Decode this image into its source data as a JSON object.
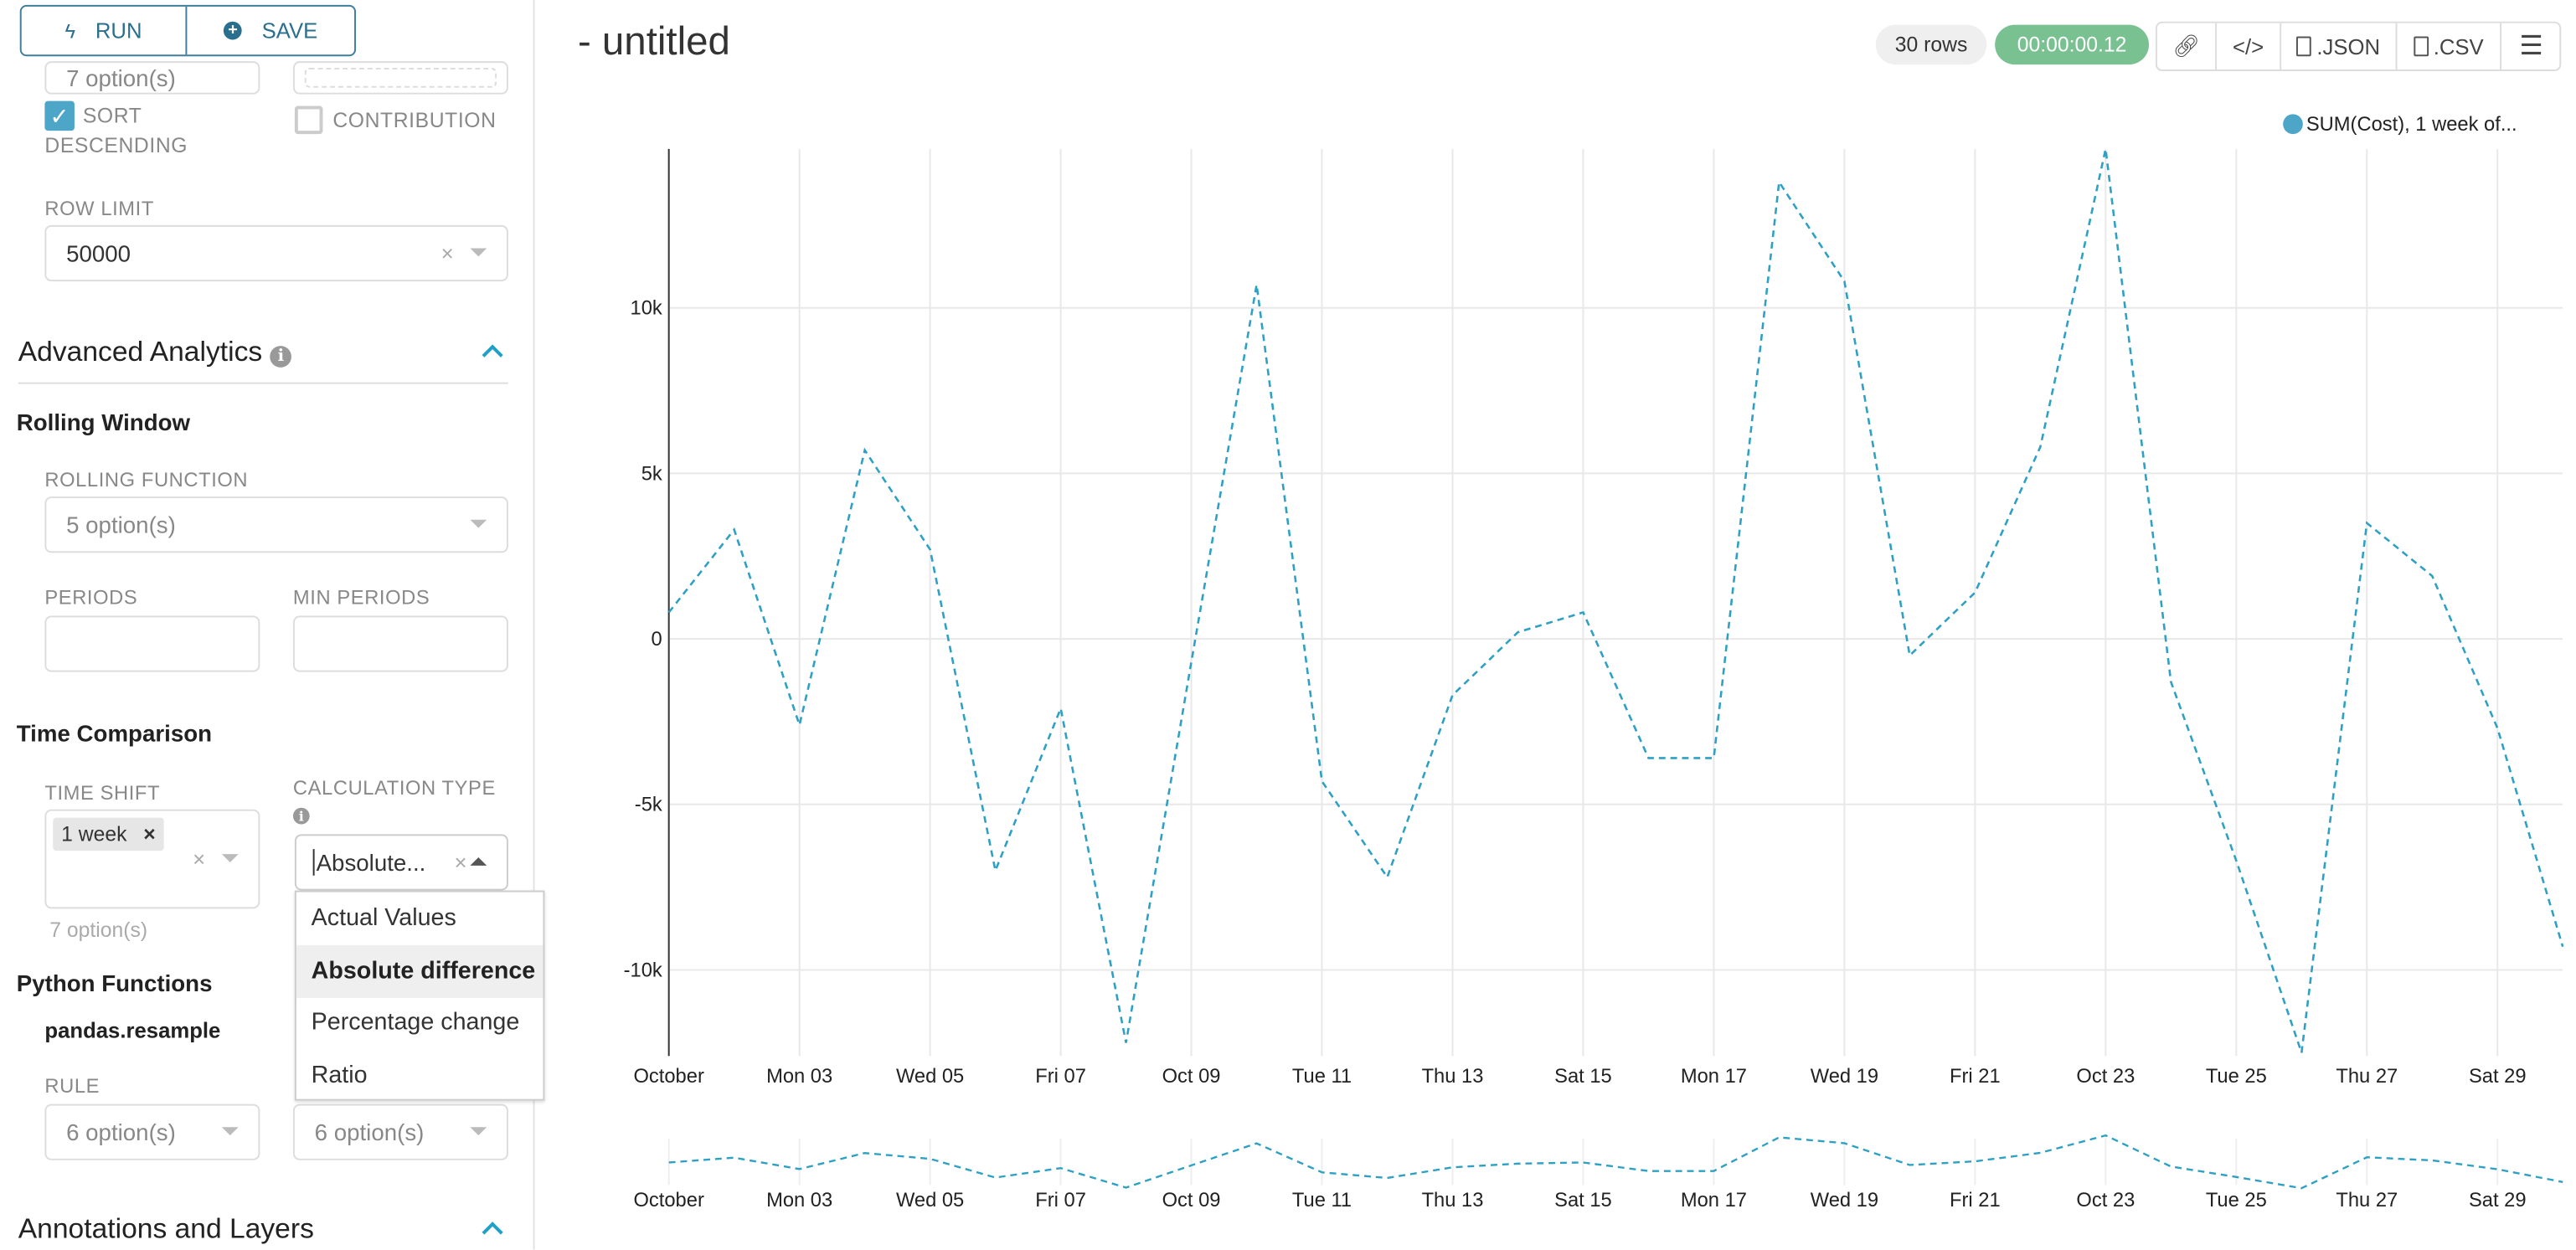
{
  "toolbar": {
    "run": "RUN",
    "save": "SAVE"
  },
  "sidebar": {
    "top_select_left": "7 option(s)",
    "sort_descending": {
      "label_line1": "SORT",
      "label_line2": "DESCENDING",
      "checked": true
    },
    "contribution": {
      "label": "CONTRIBUTION",
      "checked": false
    },
    "row_limit": {
      "label": "ROW LIMIT",
      "value": "50000"
    },
    "advanced_analytics": {
      "title": "Advanced Analytics",
      "expanded": true
    },
    "rolling_window": {
      "title": "Rolling Window",
      "rolling_function_label": "ROLLING FUNCTION",
      "rolling_function_placeholder": "5 option(s)",
      "periods_label": "PERIODS",
      "min_periods_label": "MIN PERIODS"
    },
    "time_comparison": {
      "title": "Time Comparison",
      "time_shift_label": "TIME SHIFT",
      "time_shift_tag": "1 week",
      "time_shift_count": "7 option(s)",
      "calculation_type_label": "CALCULATION TYPE",
      "calculation_type_value": "Absolute...",
      "options": [
        "Actual Values",
        "Absolute difference",
        "Percentage change",
        "Ratio"
      ],
      "highlighted_option": 1
    },
    "python_functions": {
      "title": "Python Functions",
      "subtitle": "pandas.resample",
      "rule_label": "RULE",
      "rule_placeholder": "6 option(s)",
      "method_placeholder": "6 option(s)"
    },
    "annotations": {
      "title": "Annotations and Layers",
      "expanded": true
    }
  },
  "main": {
    "title": "- untitled",
    "rows_badge": "30 rows",
    "timer_badge": "00:00:00.12",
    "actions": {
      "json": ".JSON",
      "csv": ".CSV"
    },
    "colors": {
      "accent": "#1fa0c9",
      "timer": "#79c191",
      "series": "#2ea0c4"
    }
  },
  "chart_data": {
    "type": "line",
    "line_style": "dashed",
    "legend": {
      "entries": [
        "SUM(Cost), 1 week of..."
      ],
      "placement": "top-right"
    },
    "x": [
      "2022-10-01",
      "2022-10-02",
      "2022-10-03",
      "2022-10-04",
      "2022-10-05",
      "2022-10-06",
      "2022-10-07",
      "2022-10-08",
      "2022-10-09",
      "2022-10-10",
      "2022-10-11",
      "2022-10-12",
      "2022-10-13",
      "2022-10-14",
      "2022-10-15",
      "2022-10-16",
      "2022-10-17",
      "2022-10-18",
      "2022-10-19",
      "2022-10-20",
      "2022-10-21",
      "2022-10-22",
      "2022-10-23",
      "2022-10-24",
      "2022-10-25",
      "2022-10-26",
      "2022-10-27",
      "2022-10-28",
      "2022-10-29",
      "2022-10-30"
    ],
    "series": [
      {
        "name": "SUM(Cost), 1 week of...",
        "values": [
          800,
          3300,
          -2600,
          5700,
          2700,
          -7000,
          -2100,
          -12200,
          -700,
          10700,
          -4300,
          -7200,
          -1700,
          200,
          800,
          -3600,
          -3600,
          13800,
          10800,
          -500,
          1400,
          5800,
          14800,
          -1300,
          -6700,
          -12500,
          3500,
          1900,
          -2700,
          -9300
        ]
      }
    ],
    "x_tick_labels": [
      "October",
      "Mon 03",
      "Wed 05",
      "Fri 07",
      "Oct 09",
      "Tue 11",
      "Thu 13",
      "Sat 15",
      "Mon 17",
      "Wed 19",
      "Fri 21",
      "Oct 23",
      "Tue 25",
      "Thu 27",
      "Sat 29"
    ],
    "y_ticks": [
      10000,
      5000,
      0,
      -5000,
      -10000
    ],
    "y_tick_labels": [
      "10k",
      "5k",
      "0",
      "-5k",
      "-10k"
    ],
    "ylim": [
      -12600,
      14800
    ],
    "grid": true,
    "brush": true
  }
}
